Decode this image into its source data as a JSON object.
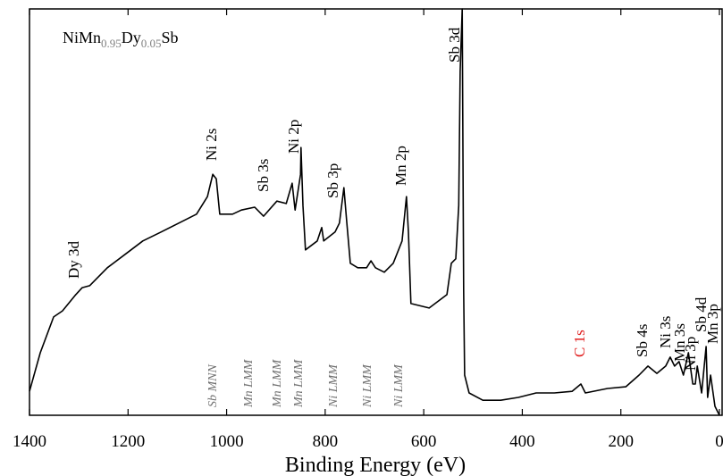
{
  "chart_data": {
    "type": "line",
    "title_parts": [
      "NiMn",
      "0.95",
      "Dy",
      "0.05",
      "Sb"
    ],
    "x_label": "Binding Energy (eV)",
    "xlim": [
      1400,
      0
    ],
    "xticks": [
      1400,
      1200,
      1000,
      800,
      600,
      400,
      200,
      0
    ],
    "ylim": [
      0,
      100
    ],
    "color": "#000000",
    "x": [
      1400,
      1378,
      1351,
      1333,
      1306,
      1293,
      1278,
      1242,
      1206,
      1170,
      1133,
      1097,
      1061,
      1039,
      1028,
      1021,
      1014,
      988,
      970,
      943,
      925,
      898,
      879,
      867,
      861,
      850,
      849,
      845,
      840,
      816,
      807,
      803,
      780,
      771,
      762,
      756,
      749,
      734,
      716,
      707,
      698,
      680,
      662,
      644,
      635,
      631,
      626,
      589,
      553,
      544,
      535,
      529,
      526,
      522,
      519,
      517,
      508,
      480,
      444,
      408,
      372,
      335,
      299,
      281,
      272,
      227,
      190,
      163,
      145,
      127,
      109,
      100,
      91,
      82,
      73,
      63,
      54,
      49,
      45,
      36,
      27,
      24,
      18,
      9,
      0
    ],
    "values": [
      5.9,
      15.4,
      24.2,
      25.7,
      29.7,
      31.4,
      31.9,
      36.3,
      39.6,
      42.9,
      45.1,
      47.3,
      49.5,
      53.8,
      59.3,
      58.2,
      49.5,
      49.5,
      50.5,
      51.2,
      49.0,
      52.7,
      52.1,
      57.1,
      50.5,
      59.3,
      65.9,
      51.6,
      40.7,
      42.9,
      46.2,
      42.9,
      45.1,
      47.3,
      56.0,
      47.3,
      37.4,
      36.3,
      36.3,
      38.0,
      36.3,
      35.2,
      37.4,
      42.9,
      53.8,
      45.1,
      27.5,
      26.4,
      29.7,
      37.4,
      38.5,
      51.6,
      84.6,
      100,
      30.8,
      9.9,
      5.5,
      3.7,
      3.7,
      4.4,
      5.5,
      5.5,
      5.9,
      7.7,
      5.5,
      6.6,
      7.0,
      9.9,
      12.1,
      10.3,
      12.1,
      14.3,
      12.1,
      13.2,
      9.9,
      15.4,
      7.7,
      7.7,
      12.1,
      5.5,
      16.9,
      4.4,
      9.9,
      2.2,
      0
    ],
    "peak_labels": [
      {
        "text": "Dy 3d",
        "color": "#000000"
      },
      {
        "text": "Ni 2s",
        "color": "#000000"
      },
      {
        "text": "Sb 3s",
        "color": "#000000"
      },
      {
        "text": "Ni 2p",
        "color": "#000000"
      },
      {
        "text": "Sb 3p",
        "color": "#000000"
      },
      {
        "text": "Mn 2p",
        "color": "#000000"
      },
      {
        "text": "Sb 3d",
        "color": "#000000"
      },
      {
        "text": "C 1s",
        "color": "#e02020"
      },
      {
        "text": "Sb 4s",
        "color": "#000000"
      },
      {
        "text": "Ni 3s",
        "color": "#000000"
      },
      {
        "text": "Mn 3s",
        "color": "#000000"
      },
      {
        "text": "Ni 3p",
        "color": "#000000"
      },
      {
        "text": "Sb 4d",
        "color": "#000000"
      },
      {
        "text": "Mn 3p",
        "color": "#000000"
      }
    ],
    "auger_labels": [
      "Sb MNN",
      "Mn LMM",
      "Mn LMM",
      "Mn LMM",
      "Ni LMM",
      "Ni LMM",
      "Ni LMM"
    ],
    "auger_color": "#707070"
  }
}
